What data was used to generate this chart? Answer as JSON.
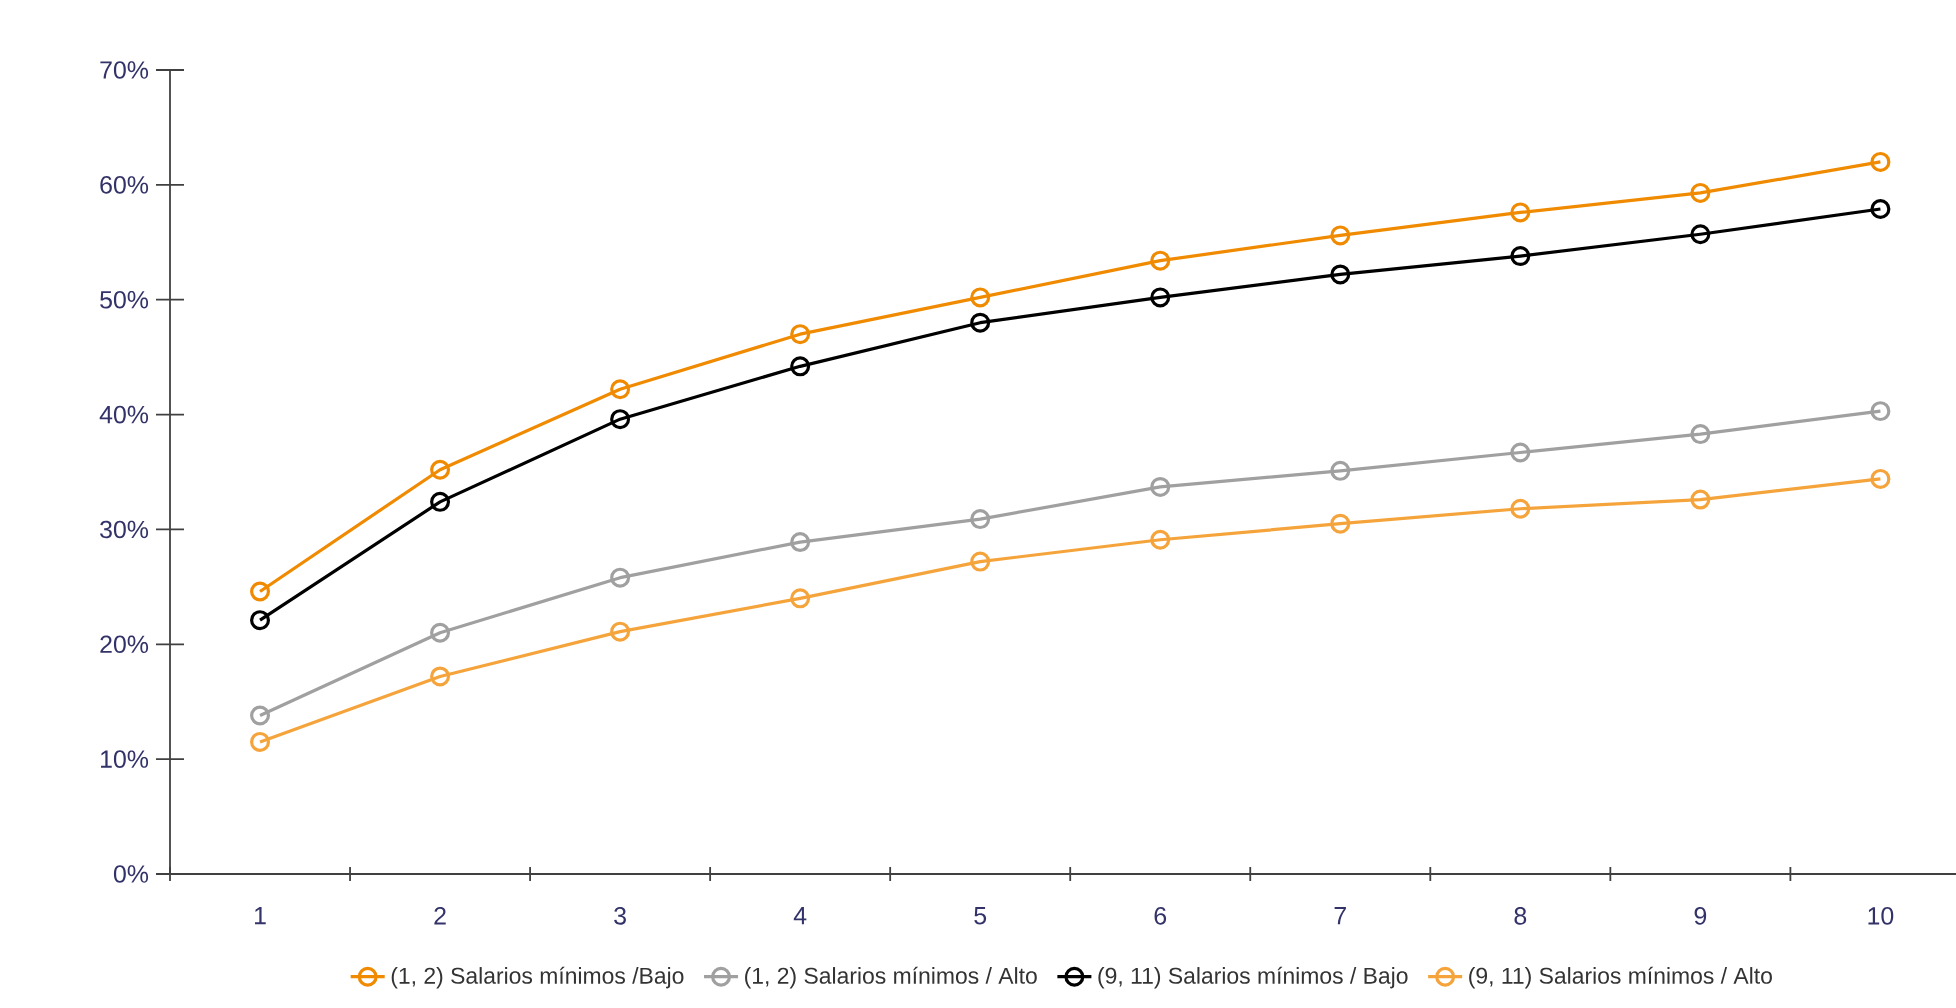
{
  "chart_data": {
    "type": "line",
    "categories": [
      "1",
      "2",
      "3",
      "4",
      "5",
      "6",
      "7",
      "8",
      "9",
      "10"
    ],
    "series": [
      {
        "name": "(1, 2) Salarios mínimos /Bajo",
        "color": "#f08a00",
        "values": [
          24.6,
          35.2,
          42.2,
          47.0,
          50.2,
          53.4,
          55.6,
          57.6,
          59.3,
          62.0
        ]
      },
      {
        "name": "(1, 2) Salarios mínimos / Alto",
        "color": "#a0a0a0",
        "values": [
          13.8,
          21.0,
          25.8,
          28.9,
          30.9,
          33.7,
          35.1,
          36.7,
          38.3,
          40.3
        ]
      },
      {
        "name": "(9, 11) Salarios mínimos / Bajo",
        "color": "#000000",
        "values": [
          22.1,
          32.4,
          39.6,
          44.2,
          48.0,
          50.2,
          52.2,
          53.8,
          55.7,
          57.9
        ]
      },
      {
        "name": "(9, 11) Salarios mínimos / Alto",
        "color": "#f5a43c",
        "values": [
          11.5,
          17.2,
          21.1,
          24.0,
          27.2,
          29.1,
          30.5,
          31.8,
          32.6,
          34.4
        ]
      }
    ],
    "ylim": [
      0,
      70
    ],
    "yticks": [
      {
        "value": 0,
        "label": "0%"
      },
      {
        "value": 10,
        "label": "10%"
      },
      {
        "value": 20,
        "label": "20%"
      },
      {
        "value": 30,
        "label": "30%"
      },
      {
        "value": 40,
        "label": "40%"
      },
      {
        "value": 50,
        "label": "50%"
      },
      {
        "value": 60,
        "label": "60%"
      },
      {
        "value": 70,
        "label": "70%"
      }
    ],
    "marker": "circle",
    "line_style": "solid",
    "legend": "bottom",
    "grid": false
  }
}
